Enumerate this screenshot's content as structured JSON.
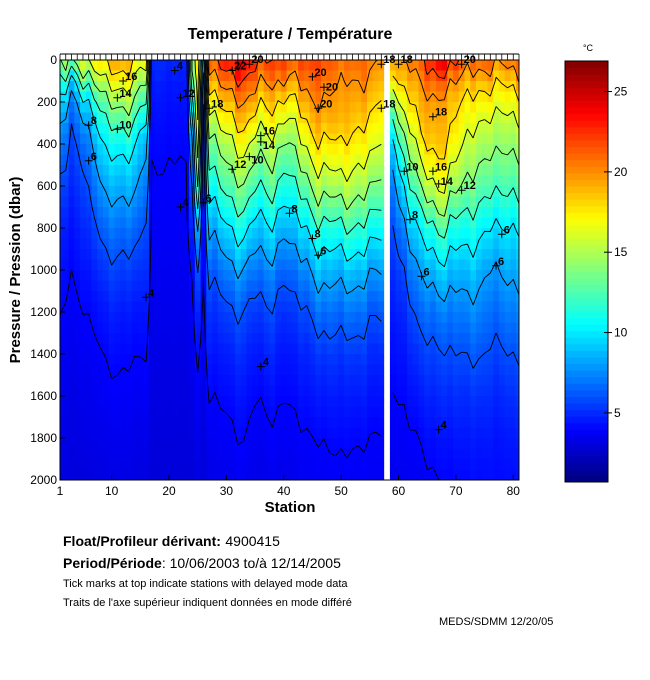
{
  "chart_data": {
    "type": "heatmap",
    "title": "Temperature / Température",
    "xlabel": "Station",
    "ylabel": "Pressure / Pression (dbar)",
    "xlim": [
      1,
      81
    ],
    "ylim": [
      2000,
      0
    ],
    "xticks": [
      1,
      10,
      20,
      30,
      40,
      50,
      60,
      70,
      80
    ],
    "yticks": [
      0,
      200,
      400,
      600,
      800,
      1000,
      1200,
      1400,
      1600,
      1800,
      2000
    ],
    "colorbar": {
      "label": "°C",
      "range": [
        0.7,
        26.9
      ],
      "ticks": [
        5,
        10,
        15,
        20,
        25
      ],
      "colormap": "jet"
    },
    "contour_levels": [
      4,
      6,
      8,
      10,
      12,
      14,
      16,
      18,
      20,
      22,
      24
    ],
    "missing_stations": [
      58
    ],
    "pressure": [
      0,
      100,
      200,
      300,
      400,
      600,
      800,
      1000,
      1200,
      1400,
      1600,
      1800,
      2000
    ],
    "profiles": [
      {
        "station": 1,
        "temperature": [
          15,
          12,
          10,
          8.5,
          7.5,
          6,
          5,
          4.5,
          4.1,
          3.8,
          3.6,
          3.4,
          3.2
        ]
      },
      {
        "station": 3,
        "temperature": [
          14,
          9,
          7,
          6,
          5.5,
          4.8,
          4.3,
          4,
          3.7,
          3.5,
          3.3,
          3.2,
          3.1
        ]
      },
      {
        "station": 5,
        "temperature": [
          16,
          12,
          9,
          7.5,
          6.5,
          5.5,
          4.8,
          4.3,
          3.9,
          3.6,
          3.4,
          3.3,
          3.1
        ]
      },
      {
        "station": 9,
        "temperature": [
          19,
          16.5,
          14,
          12,
          10.5,
          8.5,
          6.8,
          5.5,
          4.6,
          4.1,
          3.8,
          3.5,
          3.3
        ]
      },
      {
        "station": 14,
        "temperature": [
          19,
          16.5,
          14.5,
          12.5,
          10.5,
          8.5,
          6.8,
          5.5,
          4.6,
          4.1,
          3.8,
          3.5,
          3.3
        ]
      },
      {
        "station": 16,
        "temperature": [
          17,
          14,
          12,
          10,
          8.5,
          7,
          5.8,
          5,
          4.4,
          4,
          3.7,
          3.4,
          3.2
        ]
      },
      {
        "station": 17,
        "temperature": [
          5,
          4.6,
          4.4,
          4.2,
          4.1,
          3.9,
          3.8,
          3.6,
          3.5,
          3.3,
          3.2,
          3.1,
          3.0
        ]
      },
      {
        "station": 23,
        "temperature": [
          5,
          4.6,
          4.4,
          4.2,
          4.1,
          3.9,
          3.8,
          3.6,
          3.5,
          3.3,
          3.2,
          3.1,
          3.0
        ]
      },
      {
        "station": 24,
        "temperature": [
          14,
          12,
          10,
          8,
          7,
          5.5,
          4.5,
          4,
          3.7,
          3.5,
          3.3,
          3.1,
          3.0
        ]
      },
      {
        "station": 25,
        "temperature": [
          18,
          17,
          16.5,
          16,
          15,
          12,
          8,
          6,
          4.8,
          4.2,
          3.8,
          3.5,
          3.3
        ]
      },
      {
        "station": 26,
        "temperature": [
          9,
          7,
          6,
          5.5,
          5,
          4.5,
          4.2,
          4,
          3.7,
          3.5,
          3.3,
          3.1,
          3.0
        ]
      },
      {
        "station": 27,
        "temperature": [
          21,
          19,
          17,
          15,
          13.5,
          11,
          8.5,
          6.5,
          5.2,
          4.5,
          4,
          3.6,
          3.4
        ]
      },
      {
        "station": 30,
        "temperature": [
          24,
          21,
          19,
          17,
          15,
          12.5,
          9.5,
          7.2,
          5.6,
          4.7,
          4.2,
          3.8,
          3.5
        ]
      },
      {
        "station": 33,
        "temperature": [
          24,
          21.5,
          20,
          18.5,
          17,
          14,
          11,
          8,
          6,
          5,
          4.4,
          4,
          3.6
        ]
      },
      {
        "station": 35,
        "temperature": [
          23,
          21,
          19,
          17,
          15,
          12,
          9,
          7,
          5.4,
          4.6,
          4.1,
          3.7,
          3.4
        ]
      },
      {
        "station": 38,
        "temperature": [
          22,
          20,
          18.5,
          17,
          15.5,
          13,
          10,
          7.5,
          5.8,
          4.8,
          4.2,
          3.8,
          3.5
        ]
      },
      {
        "station": 40,
        "temperature": [
          22,
          19.5,
          17,
          15,
          13,
          10.5,
          8,
          6.2,
          5,
          4.4,
          4,
          3.7,
          3.4
        ]
      },
      {
        "station": 43,
        "temperature": [
          22,
          20.5,
          19,
          17.5,
          16,
          13,
          10,
          7.5,
          5.8,
          4.8,
          4.3,
          3.9,
          3.6
        ]
      },
      {
        "station": 46,
        "temperature": [
          22,
          21,
          20,
          19,
          17.5,
          14.5,
          11,
          8.5,
          6.5,
          5.2,
          4.5,
          4,
          3.7
        ]
      },
      {
        "station": 50,
        "temperature": [
          21,
          20,
          19.5,
          19,
          18,
          15.5,
          12,
          9,
          7,
          5.5,
          4.7,
          4.2,
          3.8
        ]
      },
      {
        "station": 54,
        "temperature": [
          21,
          20,
          19,
          18,
          17,
          14.5,
          11.5,
          8.5,
          6.5,
          5.2,
          4.5,
          4,
          3.7
        ]
      },
      {
        "station": 57,
        "temperature": [
          20,
          19,
          18,
          17,
          16,
          13.5,
          10.5,
          8,
          6.2,
          5,
          4.4,
          4,
          3.7
        ]
      },
      {
        "station": 59,
        "temperature": [
          19,
          16,
          13,
          11,
          9,
          7,
          5.8,
          5,
          4.5,
          4.2,
          3.9,
          3.7,
          3.5
        ]
      },
      {
        "station": 61,
        "temperature": [
          20,
          18.5,
          17,
          15,
          13,
          10,
          7.5,
          6,
          5,
          4.5,
          4.1,
          3.8,
          3.6
        ]
      },
      {
        "station": 64,
        "temperature": [
          22,
          20.5,
          19.5,
          19,
          18,
          15,
          11,
          8.5,
          6.8,
          5.5,
          4.7,
          4.1,
          3.8
        ]
      },
      {
        "station": 68,
        "temperature": [
          24,
          21,
          19.5,
          19,
          18.5,
          16,
          12,
          9,
          7,
          5.8,
          5,
          4.4,
          4
        ]
      },
      {
        "station": 72,
        "temperature": [
          21,
          19,
          17.5,
          16.5,
          15.5,
          13.5,
          11,
          9,
          7.5,
          6.2,
          5.2,
          4.6,
          4.2
        ]
      },
      {
        "station": 76,
        "temperature": [
          21,
          18.5,
          17,
          15.5,
          14.5,
          12.5,
          10,
          8,
          6.8,
          5.8,
          5,
          4.5,
          4.2
        ]
      },
      {
        "station": 81,
        "temperature": [
          21,
          18.5,
          17,
          15.5,
          14.5,
          12.5,
          10,
          8.5,
          7.2,
          6,
          5.2,
          4.6,
          4.3
        ]
      }
    ],
    "contour_labels": [
      {
        "text": "16",
        "station": 12,
        "pressure": 100
      },
      {
        "text": "14",
        "station": 11,
        "pressure": 180
      },
      {
        "text": "10",
        "station": 11,
        "pressure": 330
      },
      {
        "text": "8",
        "station": 6,
        "pressure": 310
      },
      {
        "text": "6",
        "station": 6,
        "pressure": 480
      },
      {
        "text": "4",
        "station": 21,
        "pressure": 50
      },
      {
        "text": "4",
        "station": 22,
        "pressure": 700
      },
      {
        "text": "4",
        "station": 16,
        "pressure": 1130
      },
      {
        "text": "12",
        "station": 22,
        "pressure": 180
      },
      {
        "text": "18",
        "station": 27,
        "pressure": 230
      },
      {
        "text": "22",
        "station": 31,
        "pressure": 50
      },
      {
        "text": "20",
        "station": 34,
        "pressure": 20
      },
      {
        "text": "16",
        "station": 36,
        "pressure": 360
      },
      {
        "text": "14",
        "station": 36,
        "pressure": 390
      },
      {
        "text": "10",
        "station": 34,
        "pressure": 460
      },
      {
        "text": "12",
        "station": 31,
        "pressure": 520
      },
      {
        "text": "6",
        "station": 26,
        "pressure": 680
      },
      {
        "text": "20",
        "station": 45,
        "pressure": 80
      },
      {
        "text": "20",
        "station": 47,
        "pressure": 130
      },
      {
        "text": "20",
        "station": 46,
        "pressure": 230
      },
      {
        "text": "18",
        "station": 57,
        "pressure": 20
      },
      {
        "text": "18",
        "station": 57,
        "pressure": 230
      },
      {
        "text": "8",
        "station": 41,
        "pressure": 730
      },
      {
        "text": "8",
        "station": 45,
        "pressure": 850
      },
      {
        "text": "6",
        "station": 46,
        "pressure": 930
      },
      {
        "text": "4",
        "station": 36,
        "pressure": 1460
      },
      {
        "text": "18",
        "station": 60,
        "pressure": 20
      },
      {
        "text": "18",
        "station": 66,
        "pressure": 270
      },
      {
        "text": "10",
        "station": 61,
        "pressure": 530
      },
      {
        "text": "16",
        "station": 66,
        "pressure": 530
      },
      {
        "text": "14",
        "station": 67,
        "pressure": 590
      },
      {
        "text": "12",
        "station": 71,
        "pressure": 620
      },
      {
        "text": "8",
        "station": 62,
        "pressure": 760
      },
      {
        "text": "6",
        "station": 64,
        "pressure": 1030
      },
      {
        "text": "6",
        "station": 78,
        "pressure": 830
      },
      {
        "text": "6",
        "station": 77,
        "pressure": 980
      },
      {
        "text": "20",
        "station": 71,
        "pressure": 20
      },
      {
        "text": "4",
        "station": 67,
        "pressure": 1760
      }
    ]
  },
  "info": {
    "float_label": "Float/Profileur dérivant:",
    "float_id": "4900415",
    "period_label": "Period/Période",
    "period_value": ": 10/06/2003  to/à  12/14/2005",
    "note_en": "Tick marks at top indicate stations with delayed mode data",
    "note_fr": "Traits de l'axe supérieur indiquent données en  mode différé",
    "credit": "MEDS/SDMM  12/20/05"
  }
}
